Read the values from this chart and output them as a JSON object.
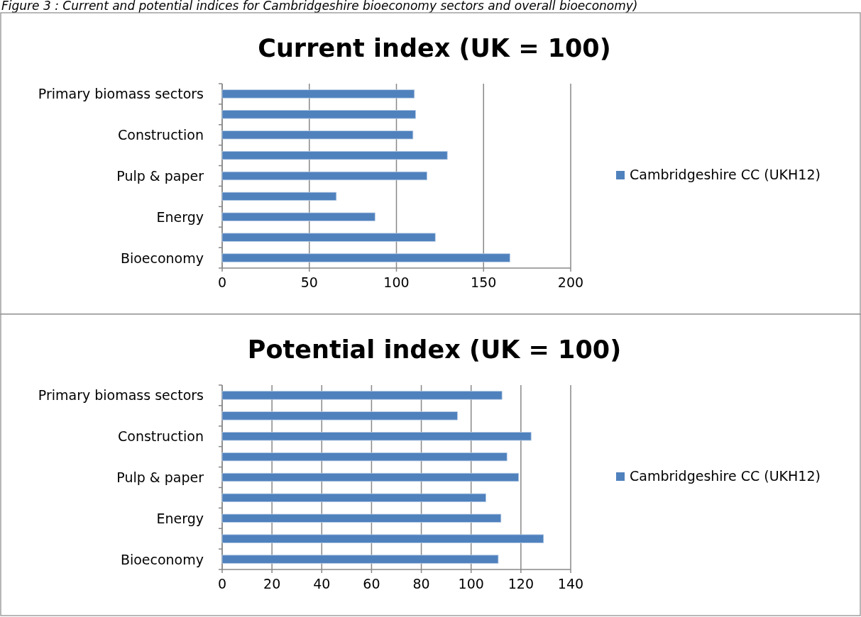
{
  "chart_data": [
    {
      "type": "bar",
      "orientation": "horizontal",
      "title": "Current index (UK = 100)",
      "annotations": [
        "Figure 3 : Current and potential indices for Cambridgeshire bioeconomy sectors and overall bioeconomy)"
      ],
      "categories": [
        "Primary biomass sectors",
        null,
        "Construction",
        null,
        "Pulp & paper",
        null,
        "Energy",
        null,
        "Bioeconomy"
      ],
      "series": [
        {
          "name": "Cambridgeshire CC (UKH12)",
          "color": "#4f81bd",
          "values": [
            110.3,
            111.0,
            109.5,
            129.2,
            117.5,
            65.5,
            87.7,
            122.3,
            165.1
          ]
        }
      ],
      "xlim": [
        0,
        200
      ],
      "xticks": [
        0,
        50,
        100,
        150,
        200
      ],
      "grid": "x",
      "legend": "right"
    },
    {
      "type": "bar",
      "orientation": "horizontal",
      "title": "Potential index (UK = 100)",
      "categories": [
        "Primary biomass sectors",
        null,
        "Construction",
        null,
        "Pulp & paper",
        null,
        "Energy",
        null,
        "Bioeconomy"
      ],
      "series": [
        {
          "name": "Cambridgeshire CC (UKH12)",
          "color": "#4f81bd",
          "values": [
            112.4,
            94.5,
            124.1,
            114.4,
            119.1,
            105.9,
            112.0,
            129.1,
            110.9
          ]
        }
      ],
      "xlim": [
        0,
        140
      ],
      "xticks": [
        0,
        20,
        40,
        60,
        80,
        100,
        120,
        140
      ],
      "grid": "x",
      "legend": "right"
    }
  ]
}
